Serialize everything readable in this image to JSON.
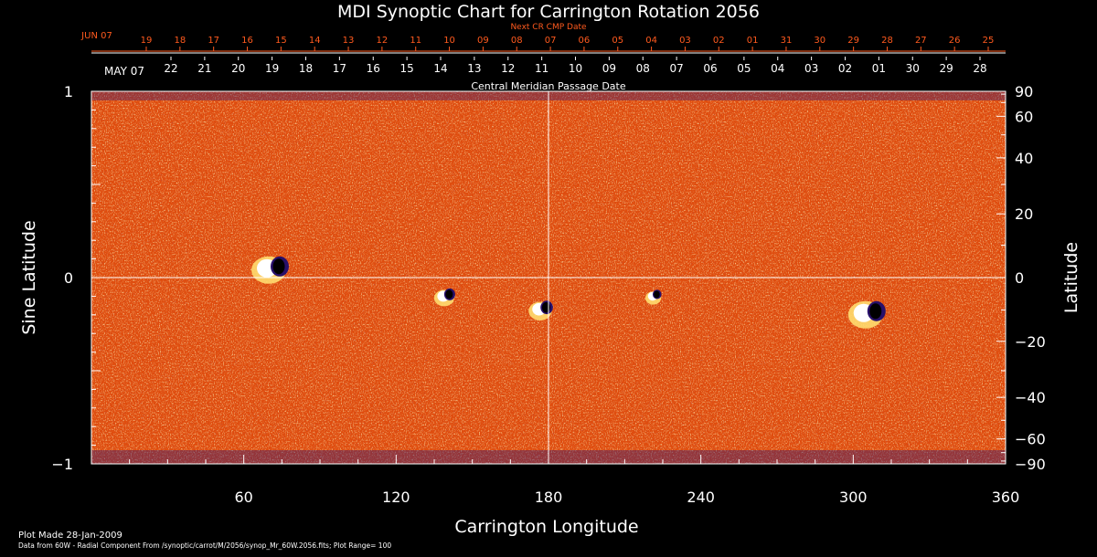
{
  "chart_data": {
    "type": "heatmap",
    "title": "MDI Synoptic Chart for Carrington Rotation 2056",
    "xlabel": "Carrington Longitude",
    "ylabel_left": "Sine Latitude",
    "ylabel_right": "Latitude",
    "xlim": [
      0,
      360
    ],
    "ylim": [
      -1,
      1
    ],
    "x_ticks": [
      {
        "value": 60,
        "label": "60"
      },
      {
        "value": 120,
        "label": "120"
      },
      {
        "value": 180,
        "label": "180"
      },
      {
        "value": 240,
        "label": "240"
      },
      {
        "value": 300,
        "label": "300"
      },
      {
        "value": 360,
        "label": "360"
      }
    ],
    "y_ticks_left": [
      {
        "value": 1,
        "label": "1"
      },
      {
        "value": 0,
        "label": "0"
      },
      {
        "value": -1,
        "label": "−1"
      }
    ],
    "y_ticks_right": [
      {
        "value": 90,
        "label": "90"
      },
      {
        "value": 60,
        "label": "60"
      },
      {
        "value": 40,
        "label": "40"
      },
      {
        "value": 20,
        "label": "20"
      },
      {
        "value": 0,
        "label": "0"
      },
      {
        "value": -20,
        "label": "−20"
      },
      {
        "value": -40,
        "label": "−40"
      },
      {
        "value": -60,
        "label": "−60"
      },
      {
        "value": -90,
        "label": "−90"
      }
    ],
    "top_axis_label": "Central Meridian Passage Date",
    "top_axis_start_label": "MAY 07",
    "top_axis_labels": [
      "22",
      "21",
      "20",
      "19",
      "18",
      "17",
      "16",
      "15",
      "14",
      "13",
      "12",
      "11",
      "10",
      "09",
      "08",
      "07",
      "06",
      "05",
      "04",
      "03",
      "02",
      "01",
      "30",
      "29",
      "28"
    ],
    "next_axis_label": "Next CR CMP Date",
    "next_axis_start_label": "JUN 07",
    "next_axis_labels": [
      "19",
      "18",
      "17",
      "16",
      "15",
      "14",
      "13",
      "12",
      "11",
      "10",
      "09",
      "08",
      "07",
      "06",
      "05",
      "04",
      "03",
      "02",
      "01",
      "31",
      "30",
      "29",
      "28",
      "27",
      "26",
      "25"
    ],
    "crosshair": {
      "longitude": 180,
      "sine_latitude": 0
    },
    "colormap": {
      "background": "#e14f10",
      "light": "#ffdd70",
      "highlight": "#ffffff",
      "dark": "#28106a",
      "core": "#000000"
    },
    "active_regions": [
      {
        "longitude": 72,
        "sine_latitude": 0.05,
        "strength": 1.0
      },
      {
        "longitude": 140,
        "sine_latitude": -0.1,
        "strength": 0.5
      },
      {
        "longitude": 178,
        "sine_latitude": -0.17,
        "strength": 0.6
      },
      {
        "longitude": 222,
        "sine_latitude": -0.1,
        "strength": 0.35
      },
      {
        "longitude": 307,
        "sine_latitude": -0.19,
        "strength": 1.0
      }
    ],
    "footer_line1": "Plot Made 28-Jan-2009",
    "footer_line2": "Data from 60W - Radial Component From /synoptic/carrot/M/2056/synop_Mr_60W.2056.fits; Plot Range= 100"
  }
}
